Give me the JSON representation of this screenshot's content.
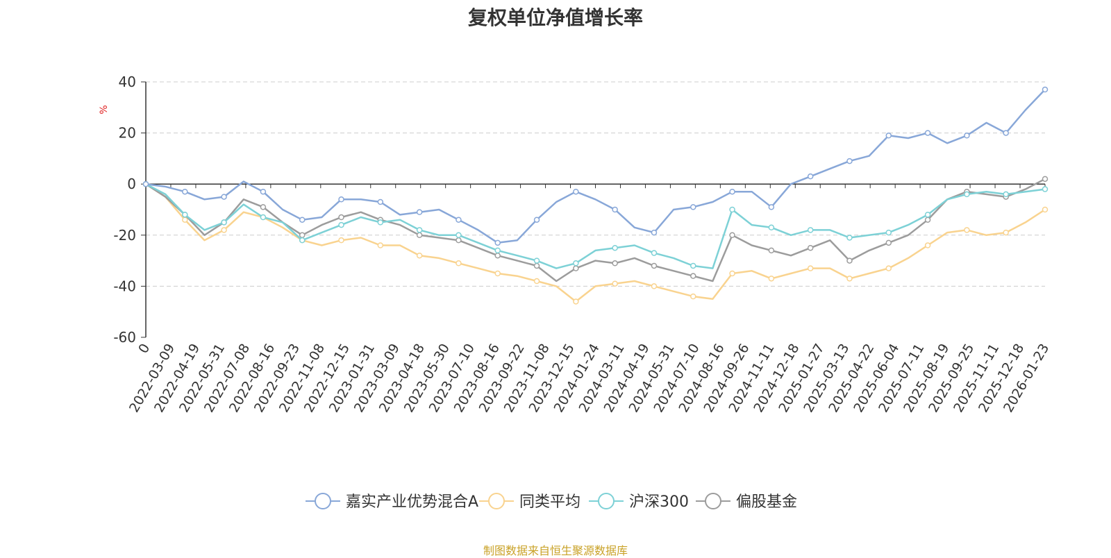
{
  "chart_data": {
    "type": "line",
    "title": "复权单位净值增长率",
    "ylabel": "%",
    "ylim": [
      -60,
      40
    ],
    "yticks": [
      40,
      20,
      0,
      -20,
      -40,
      -60
    ],
    "grid": true,
    "legend_position": "bottom-center",
    "source": "制图数据来自恒生聚源数据库",
    "x_tick_labels": [
      "0",
      "2022-03-09",
      "2022-04-19",
      "2022-05-31",
      "2022-07-08",
      "2022-08-16",
      "2022-09-23",
      "2022-11-08",
      "2022-12-15",
      "2023-01-31",
      "2023-03-09",
      "2023-04-18",
      "2023-05-30",
      "2023-07-10",
      "2023-08-16",
      "2023-09-22",
      "2023-11-08",
      "2023-12-15",
      "2024-01-24",
      "2024-03-11",
      "2024-04-19",
      "2024-05-31",
      "2024-07-10",
      "2024-08-16",
      "2024-09-26",
      "2024-11-11",
      "2024-12-18",
      "2025-01-27",
      "2025-03-13",
      "2025-04-22",
      "2025-06-04",
      "2025-07-11",
      "2025-08-19",
      "2025-09-25",
      "2025-11-11",
      "2025-12-18",
      "2026-01-23"
    ],
    "series": [
      {
        "name": "嘉实产业优势混合A",
        "color": "#88a7d8",
        "values": [
          0,
          -1,
          -3,
          -6,
          -5,
          1,
          -3,
          -10,
          -14,
          -13,
          -6,
          -6,
          -7,
          -12,
          -11,
          -10,
          -14,
          -18,
          -23,
          -22,
          -14,
          -7,
          -3,
          -6,
          -10,
          -17,
          -19,
          -10,
          -9,
          -7,
          -3,
          -3,
          -9,
          0,
          3,
          6,
          9,
          11,
          19,
          18,
          20,
          16,
          19,
          24,
          20,
          29,
          37
        ]
      },
      {
        "name": "同类平均",
        "color": "#f9d38f",
        "values": [
          0,
          -5,
          -14,
          -22,
          -18,
          -11,
          -13,
          -17,
          -22,
          -24,
          -22,
          -21,
          -24,
          -24,
          -28,
          -29,
          -31,
          -33,
          -35,
          -36,
          -38,
          -40,
          -46,
          -40,
          -39,
          -38,
          -40,
          -42,
          -44,
          -45,
          -35,
          -34,
          -37,
          -35,
          -33,
          -33,
          -37,
          -35,
          -33,
          -29,
          -24,
          -19,
          -18,
          -20,
          -19,
          -15,
          -10
        ]
      },
      {
        "name": "沪深300",
        "color": "#7dd1d6",
        "values": [
          0,
          -4,
          -12,
          -18,
          -15,
          -8,
          -13,
          -15,
          -22,
          -19,
          -16,
          -13,
          -15,
          -14,
          -18,
          -20,
          -20,
          -23,
          -26,
          -28,
          -30,
          -33,
          -31,
          -26,
          -25,
          -24,
          -27,
          -29,
          -32,
          -33,
          -10,
          -16,
          -17,
          -20,
          -18,
          -18,
          -21,
          -20,
          -19,
          -16,
          -12,
          -6,
          -4,
          -3,
          -4,
          -3,
          -2
        ]
      },
      {
        "name": "偏股基金",
        "color": "#9c9c9c",
        "values": [
          0,
          -5,
          -12,
          -20,
          -15,
          -6,
          -9,
          -15,
          -20,
          -16,
          -13,
          -11,
          -14,
          -16,
          -20,
          -21,
          -22,
          -25,
          -28,
          -30,
          -32,
          -38,
          -33,
          -30,
          -31,
          -29,
          -32,
          -34,
          -36,
          -38,
          -20,
          -24,
          -26,
          -28,
          -25,
          -22,
          -30,
          -26,
          -23,
          -20,
          -14,
          -6,
          -3,
          -4,
          -5,
          -2,
          2
        ]
      }
    ]
  }
}
